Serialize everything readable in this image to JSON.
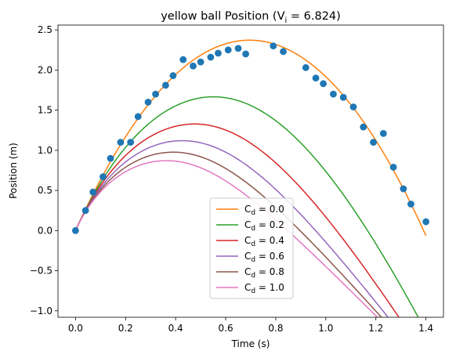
{
  "chart_data": {
    "type": "line",
    "title": "yellow ball Position (V",
    "title_sub": "i",
    "title_tail": " = 6.824)",
    "xlabel": "Time (s)",
    "ylabel": "Position (m)",
    "xlim": [
      -0.07,
      1.47
    ],
    "ylim": [
      -1.08,
      2.56
    ],
    "xticks": [
      0.0,
      0.2,
      0.4,
      0.6,
      0.8,
      1.0,
      1.2,
      1.4
    ],
    "xtick_labels": [
      "0.0",
      "0.2",
      "0.4",
      "0.6",
      "0.8",
      "1.0",
      "1.2",
      "1.4"
    ],
    "yticks": [
      -1.0,
      -0.5,
      0.0,
      0.5,
      1.0,
      1.5,
      2.0,
      2.5
    ],
    "ytick_labels": [
      "−1.0",
      "−0.5",
      "0.0",
      "0.5",
      "1.0",
      "1.5",
      "2.0",
      "2.5"
    ],
    "grid": false,
    "legend_position": "bottom-center",
    "scatter": {
      "color": "#1f77b4",
      "x": [
        0.0,
        0.04,
        0.07,
        0.11,
        0.14,
        0.18,
        0.22,
        0.25,
        0.29,
        0.32,
        0.36,
        0.39,
        0.43,
        0.47,
        0.5,
        0.54,
        0.57,
        0.61,
        0.65,
        0.68,
        0.79,
        0.83,
        0.92,
        0.96,
        0.99,
        1.03,
        1.07,
        1.11,
        1.15,
        1.19,
        1.23,
        1.27,
        1.31,
        1.34,
        1.4
      ],
      "y": [
        0.0,
        0.25,
        0.48,
        0.67,
        0.9,
        1.1,
        1.1,
        1.42,
        1.6,
        1.7,
        1.81,
        1.93,
        2.13,
        2.05,
        2.1,
        2.16,
        2.21,
        2.25,
        2.27,
        2.2,
        2.3,
        2.23,
        2.03,
        1.9,
        1.83,
        1.7,
        1.66,
        1.54,
        1.29,
        1.1,
        1.21,
        0.79,
        0.52,
        0.33,
        0.11
      ]
    },
    "series": [
      {
        "name": "C",
        "sub": "d",
        "value": "0.0",
        "color": "#ff7f0e",
        "k": 0.0
      },
      {
        "name": "C",
        "sub": "d",
        "value": "0.2",
        "color": "#2ca02c",
        "k": 0.2
      },
      {
        "name": "C",
        "sub": "d",
        "value": "0.4",
        "color": "#d62728",
        "k": 0.4
      },
      {
        "name": "C",
        "sub": "d",
        "value": "0.6",
        "color": "#9467bd",
        "k": 0.6
      },
      {
        "name": "C",
        "sub": "d",
        "value": "0.8",
        "color": "#8c564b",
        "k": 0.8
      },
      {
        "name": "C",
        "sub": "d",
        "value": "1.0",
        "color": "#e377c2",
        "k": 1.0
      }
    ],
    "model": {
      "v0": 6.824,
      "g": 9.81,
      "t_max": 1.4,
      "samples": 141
    }
  }
}
